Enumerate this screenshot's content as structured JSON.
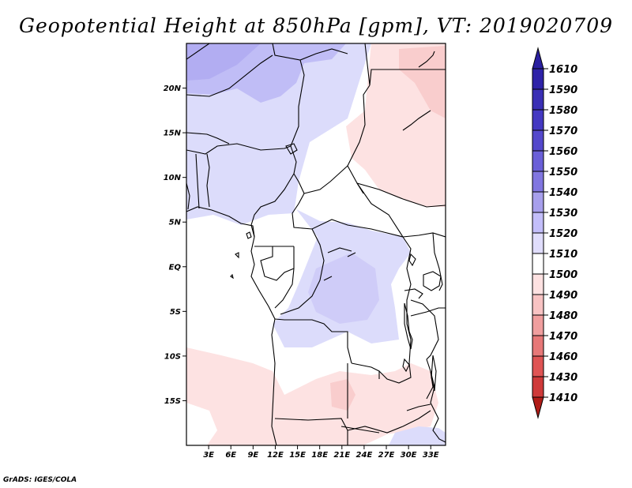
{
  "title": "Geopotential Height at 850hPa [gpm], VT: 2019020709",
  "footer": "GrADS: IGES/COLA",
  "colors": {
    "ocean_background": "#ffffff",
    "border": "#000000"
  },
  "map": {
    "lon_range": [
      0,
      35
    ],
    "lat_range": [
      -20,
      25
    ],
    "lat_ticks": [
      {
        "value": 20,
        "label": "20N"
      },
      {
        "value": 15,
        "label": "15N"
      },
      {
        "value": 10,
        "label": "10N"
      },
      {
        "value": 5,
        "label": "5N"
      },
      {
        "value": 0,
        "label": "EQ"
      },
      {
        "value": -5,
        "label": "5S"
      },
      {
        "value": -10,
        "label": "10S"
      },
      {
        "value": -15,
        "label": "15S"
      }
    ],
    "lon_ticks": [
      {
        "value": 3,
        "label": "3E"
      },
      {
        "value": 6,
        "label": "6E"
      },
      {
        "value": 9,
        "label": "9E"
      },
      {
        "value": 12,
        "label": "12E"
      },
      {
        "value": 15,
        "label": "15E"
      },
      {
        "value": 18,
        "label": "18E"
      },
      {
        "value": 21,
        "label": "21E"
      },
      {
        "value": 24,
        "label": "24E"
      },
      {
        "value": 27,
        "label": "27E"
      },
      {
        "value": 30,
        "label": "30E"
      },
      {
        "value": 33,
        "label": "33E"
      }
    ]
  },
  "colorbar": {
    "top_arrow_color": "#2a1fa0",
    "bottom_arrow_color": "#b01c17",
    "levels": [
      {
        "label": "1610",
        "color": "#2e22a8"
      },
      {
        "label": "1590",
        "color": "#3a2fb5"
      },
      {
        "label": "1580",
        "color": "#4438c2"
      },
      {
        "label": "1570",
        "color": "#5448cc"
      },
      {
        "label": "1560",
        "color": "#6a5fd8"
      },
      {
        "label": "1550",
        "color": "#8176e0"
      },
      {
        "label": "1540",
        "color": "#a79fec"
      },
      {
        "label": "1530",
        "color": "#c3befa"
      },
      {
        "label": "1520",
        "color": "#e0ddfc"
      },
      {
        "label": "1510",
        "color": "#ffffff"
      },
      {
        "label": "1500",
        "color": "#fde1e1"
      },
      {
        "label": "1490",
        "color": "#f8c3c3"
      },
      {
        "label": "1480",
        "color": "#f09e9e"
      },
      {
        "label": "1470",
        "color": "#e77878"
      },
      {
        "label": "1460",
        "color": "#df5454"
      },
      {
        "label": "1430",
        "color": "#cf3a3a"
      },
      {
        "label": "1410",
        "color": "#b82424"
      }
    ]
  }
}
